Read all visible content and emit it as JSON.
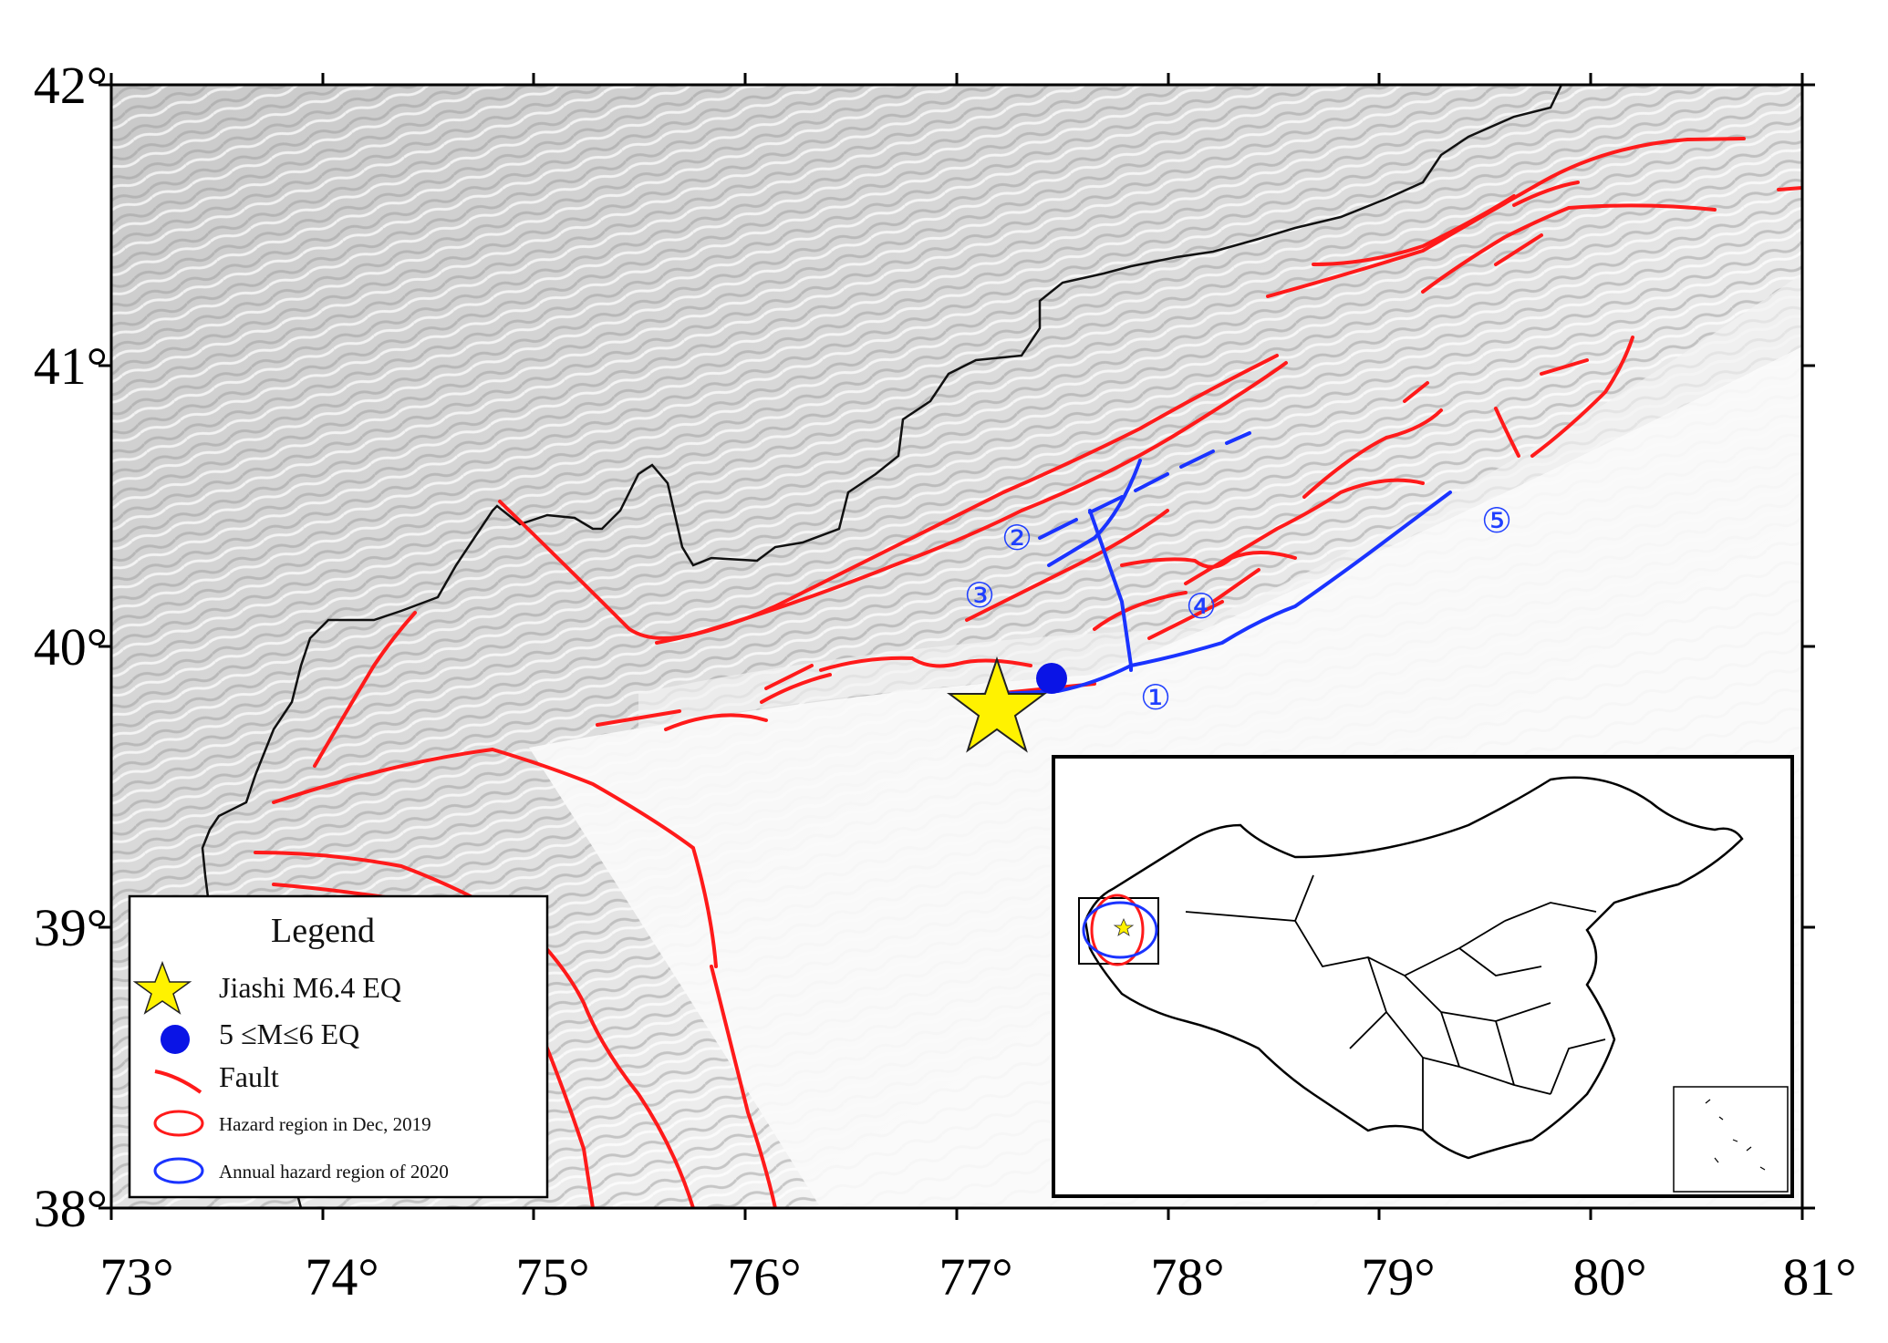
{
  "map": {
    "x_ticks": [
      "73°",
      "74°",
      "75°",
      "76°",
      "77°",
      "78°",
      "79°",
      "80°",
      "81°"
    ],
    "y_ticks": [
      "42°",
      "41°",
      "40°",
      "39°",
      "38°"
    ],
    "fault_labels": [
      "①",
      "②",
      "③",
      "④",
      "⑤"
    ],
    "colors": {
      "fault": "#ff1a1a",
      "blue_fault": "#1a33ff",
      "star": "#fff200",
      "eq_dot": "#0a14e6"
    }
  },
  "legend": {
    "title": "Legend",
    "items": [
      {
        "symbol": "star-icon",
        "label": "Jiashi M6.4 EQ"
      },
      {
        "symbol": "dot-icon",
        "label": "5 ≤M≤6 EQ"
      },
      {
        "symbol": "fault-line-icon",
        "label": "Fault"
      },
      {
        "symbol": "red-ellipse-icon",
        "label": "Hazard region in Dec, 2019"
      },
      {
        "symbol": "blue-ellipse-icon",
        "label": "Annual hazard region of 2020"
      }
    ]
  }
}
